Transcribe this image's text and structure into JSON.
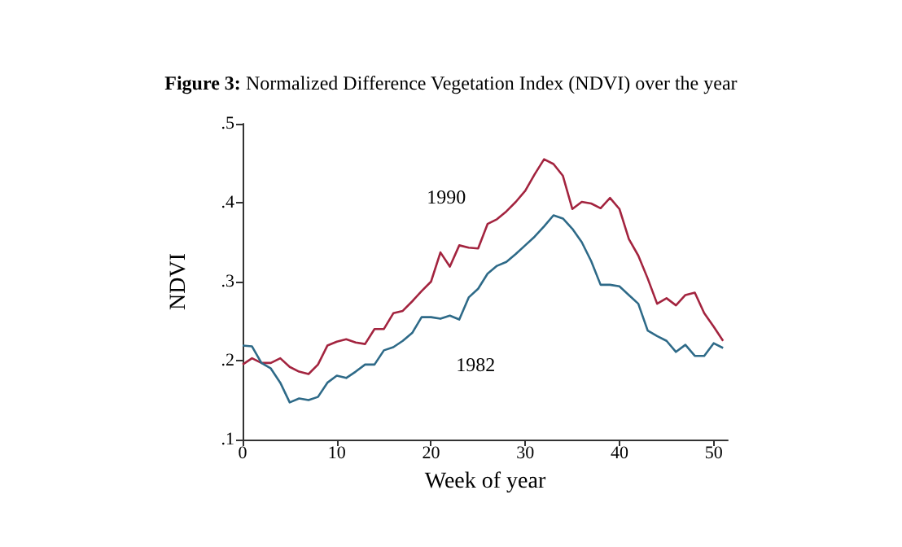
{
  "chart_data": {
    "type": "line",
    "title": "Figure 3: Normalized Difference Vegetation Index (NDVI) over the year",
    "xlabel": "Week of year",
    "ylabel": "NDVI",
    "x": [
      0,
      1,
      2,
      3,
      4,
      5,
      6,
      7,
      8,
      9,
      10,
      11,
      12,
      13,
      14,
      15,
      16,
      17,
      18,
      19,
      20,
      21,
      22,
      23,
      24,
      25,
      26,
      27,
      28,
      29,
      30,
      31,
      32,
      33,
      34,
      35,
      36,
      37,
      38,
      39,
      40,
      41,
      42,
      43,
      44,
      45,
      46,
      47,
      48,
      49,
      50,
      51
    ],
    "series": [
      {
        "name": "1990",
        "color": "#a3243f",
        "values": [
          0.195,
          0.203,
          0.197,
          0.197,
          0.203,
          0.192,
          0.186,
          0.183,
          0.195,
          0.219,
          0.224,
          0.227,
          0.223,
          0.221,
          0.24,
          0.24,
          0.26,
          0.263,
          0.275,
          0.288,
          0.3,
          0.337,
          0.319,
          0.346,
          0.343,
          0.342,
          0.373,
          0.379,
          0.389,
          0.401,
          0.415,
          0.436,
          0.455,
          0.449,
          0.434,
          0.392,
          0.401,
          0.399,
          0.393,
          0.406,
          0.392,
          0.354,
          0.333,
          0.304,
          0.272,
          0.279,
          0.27,
          0.283,
          0.286,
          0.26,
          0.243,
          0.225
        ]
      },
      {
        "name": "1982",
        "color": "#2e6a88",
        "values": [
          0.219,
          0.218,
          0.197,
          0.19,
          0.172,
          0.147,
          0.152,
          0.15,
          0.154,
          0.172,
          0.181,
          0.178,
          0.186,
          0.195,
          0.195,
          0.213,
          0.217,
          0.225,
          0.235,
          0.255,
          0.255,
          0.253,
          0.257,
          0.252,
          0.28,
          0.291,
          0.31,
          0.32,
          0.325,
          0.335,
          0.346,
          0.357,
          0.37,
          0.384,
          0.38,
          0.367,
          0.35,
          0.326,
          0.296,
          0.296,
          0.294,
          0.283,
          0.272,
          0.238,
          0.231,
          0.225,
          0.211,
          0.22,
          0.206,
          0.206,
          0.222,
          0.216
        ]
      }
    ],
    "xlim": [
      0,
      51.5
    ],
    "xticks": [
      0,
      10,
      20,
      30,
      40,
      50
    ],
    "ylim": [
      0.1,
      0.5
    ],
    "yticks": [
      {
        "value": 0.1,
        "label": ".1"
      },
      {
        "value": 0.2,
        "label": ".2"
      },
      {
        "value": 0.3,
        "label": ".3"
      },
      {
        "value": 0.4,
        "label": ".4"
      },
      {
        "value": 0.5,
        "label": ".5"
      }
    ],
    "grid": false,
    "legend": false,
    "marker": "none",
    "line_style": "solid"
  }
}
